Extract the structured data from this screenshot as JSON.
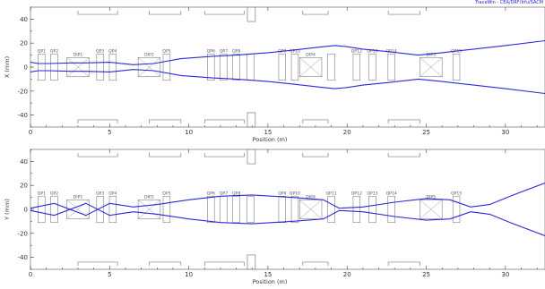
{
  "app": {
    "title": "TraceWin - CEA/DRF/Irfu/SACM"
  },
  "colors": {
    "envelope": "#2a2ad8",
    "element": "#7f7f7f",
    "frame": "#808080"
  },
  "chart_data": [
    {
      "type": "line",
      "ylabel": "X (mm)",
      "xlabel": "Position (m)",
      "xlim": [
        0,
        32.5
      ],
      "ylim": [
        -50,
        50
      ],
      "x_ticks": [
        0,
        5,
        10,
        15,
        20,
        25,
        30
      ],
      "y_ticks": [
        -40,
        -20,
        0,
        20,
        40
      ],
      "grid": false,
      "series": [
        {
          "x": [
            0,
            0.5,
            1.2,
            2.5,
            3.5,
            5.0,
            6.5,
            7.8,
            9.5,
            11.5,
            13.0,
            15.0,
            16.5,
            18.5,
            19.2,
            20.0,
            21.0,
            22.5,
            24.5,
            26.0,
            28.0,
            30.0,
            32.5
          ],
          "values": [
            4,
            3,
            3,
            3.5,
            3.5,
            4,
            2,
            3,
            7,
            9,
            10,
            12,
            14,
            17,
            18,
            17,
            15,
            13,
            10,
            12,
            15,
            18,
            22
          ]
        },
        {
          "x": [
            0,
            0.5,
            1.2,
            2.5,
            3.5,
            5.0,
            6.5,
            7.8,
            9.5,
            11.5,
            13.0,
            15.0,
            16.5,
            18.5,
            19.2,
            20.0,
            21.0,
            22.5,
            24.5,
            26.0,
            28.0,
            30.0,
            32.5
          ],
          "values": [
            -4,
            -3,
            -3,
            -3.5,
            -3.5,
            -4,
            -2,
            -3,
            -7,
            -9,
            -10,
            -12,
            -14,
            -17,
            -18,
            -17,
            -15,
            -13,
            -10,
            -12,
            -15,
            -18,
            -22
          ]
        }
      ],
      "elements": [
        {
          "label": "QP1",
          "s": 0.7,
          "type": "quad"
        },
        {
          "label": "QP2",
          "s": 1.5,
          "type": "quad"
        },
        {
          "label": "DIP1",
          "s": 3.0,
          "type": "dipole"
        },
        {
          "label": "QP3",
          "s": 4.4,
          "type": "quad"
        },
        {
          "label": "QP4",
          "s": 5.2,
          "type": "quad"
        },
        {
          "label": "DIP2",
          "s": 7.5,
          "type": "dipole"
        },
        {
          "label": "QP5",
          "s": 8.6,
          "type": "quad"
        },
        {
          "label": "QP6",
          "s": 11.4,
          "type": "quad"
        },
        {
          "label": "QP7",
          "s": 12.2,
          "type": "quad"
        },
        {
          "label": "QP8",
          "s": 13.0,
          "type": "quad"
        },
        {
          "label": "",
          "s": 13.9,
          "type": "quad"
        },
        {
          "label": "QP9",
          "s": 15.9,
          "type": "quad"
        },
        {
          "label": "QP10",
          "s": 16.7,
          "type": "quad"
        },
        {
          "label": "DIP4",
          "s": 17.7,
          "type": "dipole"
        },
        {
          "label": "",
          "s": 19.0,
          "type": "quad"
        },
        {
          "label": "QP12",
          "s": 20.6,
          "type": "quad"
        },
        {
          "label": "QP13",
          "s": 21.6,
          "type": "quad"
        },
        {
          "label": "QP14",
          "s": 22.8,
          "type": "quad"
        },
        {
          "label": "DIP5",
          "s": 25.3,
          "type": "dipole"
        },
        {
          "label": "QP15",
          "s": 26.9,
          "type": "quad"
        }
      ]
    },
    {
      "type": "line",
      "ylabel": "Y (mm)",
      "xlabel": "Position (m)",
      "xlim": [
        0,
        32.5
      ],
      "ylim": [
        -50,
        50
      ],
      "x_ticks": [
        0,
        5,
        10,
        15,
        20,
        25,
        30
      ],
      "y_ticks": [
        -40,
        -20,
        0,
        20,
        40
      ],
      "grid": false,
      "series": [
        {
          "x": [
            0,
            1.5,
            3.5,
            5.0,
            6.5,
            8.0,
            10.0,
            12.0,
            14.0,
            16.5,
            18.5,
            19.5,
            21.0,
            23.0,
            25.0,
            26.5,
            27.8,
            29.0,
            30.5,
            32.5
          ],
          "values": [
            1,
            5,
            -5,
            5,
            2,
            4,
            8,
            11,
            12,
            10,
            8,
            1,
            2,
            6,
            9,
            8,
            2,
            4,
            12,
            22
          ]
        },
        {
          "x": [
            0,
            1.5,
            3.5,
            5.0,
            6.5,
            8.0,
            10.0,
            12.0,
            14.0,
            16.5,
            18.5,
            19.5,
            21.0,
            23.0,
            25.0,
            26.5,
            27.8,
            29.0,
            30.5,
            32.5
          ],
          "values": [
            -1,
            -5,
            5,
            -5,
            -2,
            -4,
            -8,
            -11,
            -12,
            -10,
            -8,
            -1,
            -2,
            -6,
            -9,
            -8,
            -2,
            -4,
            -12,
            -22
          ]
        }
      ],
      "elements": [
        {
          "label": "QP1",
          "s": 0.7,
          "type": "quad"
        },
        {
          "label": "QP2",
          "s": 1.5,
          "type": "quad"
        },
        {
          "label": "DIP1",
          "s": 3.0,
          "type": "dipole"
        },
        {
          "label": "QP3",
          "s": 4.4,
          "type": "quad"
        },
        {
          "label": "QP4",
          "s": 5.2,
          "type": "quad"
        },
        {
          "label": "DIP2",
          "s": 7.5,
          "type": "dipole"
        },
        {
          "label": "QP5",
          "s": 8.6,
          "type": "quad"
        },
        {
          "label": "QP6",
          "s": 11.4,
          "type": "quad"
        },
        {
          "label": "QP7",
          "s": 12.2,
          "type": "quad"
        },
        {
          "label": "QP8",
          "s": 13.0,
          "type": "quad"
        },
        {
          "label": "",
          "s": 13.9,
          "type": "quad"
        },
        {
          "label": "QP9",
          "s": 15.9,
          "type": "quad"
        },
        {
          "label": "QP10",
          "s": 16.7,
          "type": "quad"
        },
        {
          "label": "DIP4",
          "s": 17.7,
          "type": "dipole"
        },
        {
          "label": "QP11",
          "s": 19.0,
          "type": "quad"
        },
        {
          "label": "QP12",
          "s": 20.6,
          "type": "quad"
        },
        {
          "label": "QP13",
          "s": 21.6,
          "type": "quad"
        },
        {
          "label": "QP14",
          "s": 22.8,
          "type": "quad"
        },
        {
          "label": "DIP5",
          "s": 25.3,
          "type": "dipole"
        },
        {
          "label": "QP15",
          "s": 26.9,
          "type": "quad"
        }
      ]
    }
  ]
}
